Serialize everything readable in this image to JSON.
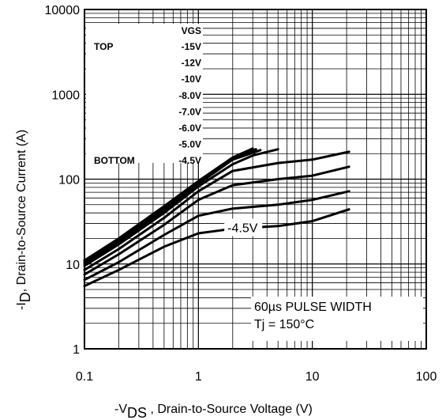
{
  "chart_data": {
    "type": "line",
    "x_scale": "log",
    "y_scale": "log",
    "xlim": [
      0.1,
      100
    ],
    "ylim": [
      1,
      10000
    ],
    "grid": true,
    "xlabel_prefix": "-V",
    "xlabel_sub": "DS",
    "xlabel_suffix": " , Drain-to-Source Voltage (V)",
    "ylabel_prefix": "-I",
    "ylabel_sub": "D",
    "ylabel_suffix": ",  Drain-to-Source Current (A)",
    "x_ticks": [
      {
        "value": 0.1,
        "label": "0.1"
      },
      {
        "value": 1,
        "label": "1"
      },
      {
        "value": 10,
        "label": "10"
      },
      {
        "value": 100,
        "label": "100"
      }
    ],
    "y_ticks": [
      {
        "value": 1,
        "label": "1"
      },
      {
        "value": 10,
        "label": "10"
      },
      {
        "value": 100,
        "label": "100"
      },
      {
        "value": 1000,
        "label": "1000"
      },
      {
        "value": 10000,
        "label": "10000"
      }
    ],
    "legend": {
      "placement": "top-left",
      "header": "VGS",
      "top_label": "TOP",
      "bottom_label": "BOTTOM",
      "entries": [
        "-15V",
        "-12V",
        "-10V",
        "-8.0V",
        "-7.0V",
        "-6.0V",
        "-5.0V",
        "-4.5V"
      ]
    },
    "annotations": [
      "60µs PULSE  WIDTH",
      "Tj = 150°C"
    ],
    "series_label": {
      "text": "-4.5V",
      "at_x": 1.8,
      "at_y": 27
    },
    "series": [
      {
        "x": [
          0.1,
          0.2,
          0.5,
          1,
          2,
          3
        ],
        "y": [
          11,
          20,
          48,
          95,
          180,
          230
        ]
      },
      {
        "x": [
          0.1,
          0.2,
          0.5,
          1,
          2,
          3.2
        ],
        "y": [
          10.5,
          19,
          45,
          92,
          175,
          225
        ]
      },
      {
        "x": [
          0.1,
          0.2,
          0.5,
          1,
          2,
          3.5
        ],
        "y": [
          10,
          18,
          43,
          88,
          170,
          220
        ]
      },
      {
        "x": [
          0.1,
          0.2,
          0.5,
          1,
          2,
          3,
          5
        ],
        "y": [
          9.5,
          17,
          40,
          82,
          150,
          190,
          225
        ]
      },
      {
        "x": [
          0.1,
          0.2,
          0.5,
          1,
          2,
          5,
          10,
          21
        ],
        "y": [
          8.5,
          15,
          35,
          72,
          125,
          155,
          170,
          210
        ]
      },
      {
        "x": [
          0.1,
          0.2,
          0.5,
          1,
          2,
          5,
          10,
          21
        ],
        "y": [
          7.5,
          13,
          29,
          57,
          85,
          100,
          110,
          140
        ]
      },
      {
        "x": [
          0.1,
          0.2,
          0.5,
          1,
          2,
          5,
          10,
          21
        ],
        "y": [
          6.5,
          10.5,
          22,
          37,
          45,
          50,
          57,
          72
        ]
      },
      {
        "x": [
          0.1,
          0.2,
          0.5,
          1,
          2,
          5,
          10,
          21
        ],
        "y": [
          5.5,
          8.5,
          16,
          23,
          26,
          28,
          32,
          44
        ]
      }
    ]
  }
}
